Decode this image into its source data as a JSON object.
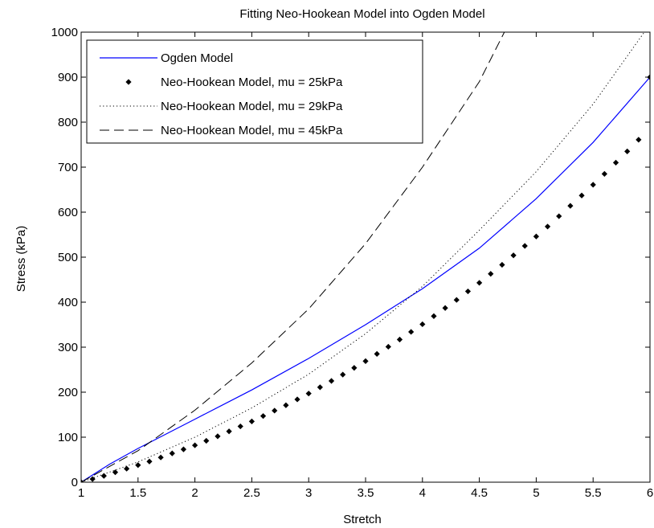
{
  "chart_data": {
    "type": "line",
    "title": "Fitting Neo-Hookean Model into Ogden Model",
    "xlabel": "Stretch",
    "ylabel": "Stress (kPa)",
    "xlim": [
      1,
      6
    ],
    "ylim": [
      0,
      1000
    ],
    "xticks": [
      "1",
      "1.5",
      "2",
      "2.5",
      "3",
      "3.5",
      "4",
      "4.5",
      "5",
      "5.5",
      "6"
    ],
    "yticks": [
      "0",
      "100",
      "200",
      "300",
      "400",
      "500",
      "600",
      "700",
      "800",
      "900",
      "1000"
    ],
    "grid": false,
    "legend_position": "top-left",
    "series": [
      {
        "name": "Ogden Model",
        "style": "solid",
        "color": "#0000ff",
        "x": [
          1,
          1.25,
          1.5,
          2,
          2.5,
          3,
          3.5,
          4,
          4.5,
          5,
          5.5,
          6
        ],
        "y": [
          0,
          40,
          75,
          140,
          205,
          275,
          350,
          430,
          520,
          630,
          755,
          900
        ]
      },
      {
        "name": "Neo-Hookean Model, mu = 25kPa",
        "style": "markers",
        "color": "#000000",
        "x": [
          1,
          1.1,
          1.2,
          1.3,
          1.4,
          1.5,
          1.6,
          1.7,
          1.8,
          1.9,
          2,
          2.1,
          2.2,
          2.3,
          2.4,
          2.5,
          2.6,
          2.7,
          2.8,
          2.9,
          3,
          3.1,
          3.2,
          3.3,
          3.4,
          3.5,
          3.6,
          3.7,
          3.8,
          3.9,
          4,
          4.1,
          4.2,
          4.3,
          4.4,
          4.5,
          4.6,
          4.7,
          4.8,
          4.9,
          5,
          5.1,
          5.2,
          5.3,
          5.4,
          5.5,
          5.6,
          5.7,
          5.8,
          5.9,
          6
        ],
        "y": [
          0,
          7,
          14,
          22,
          30,
          38,
          46,
          55,
          64,
          73,
          82,
          92,
          102,
          113,
          124,
          135,
          147,
          159,
          171,
          184,
          197,
          211,
          225,
          239,
          254,
          269,
          285,
          301,
          317,
          334,
          351,
          369,
          387,
          405,
          424,
          443,
          463,
          483,
          504,
          525,
          546,
          568,
          591,
          614,
          637,
          661,
          685,
          710,
          735,
          761,
          900
        ]
      },
      {
        "name": "Neo-Hookean Model, mu = 29kPa",
        "style": "dotted",
        "color": "#000000",
        "x": [
          1,
          1.5,
          2,
          2.5,
          3,
          3.5,
          4,
          4.5,
          5,
          5.5,
          5.95
        ],
        "y": [
          0,
          45,
          100,
          165,
          240,
          330,
          435,
          560,
          690,
          840,
          1000
        ]
      },
      {
        "name": "Neo-Hookean Model, mu = 45kPa",
        "style": "dashed",
        "color": "#000000",
        "x": [
          1,
          1.5,
          2,
          2.5,
          3,
          3.5,
          4,
          4.5,
          4.72
        ],
        "y": [
          0,
          70,
          160,
          265,
          385,
          530,
          700,
          890,
          1000
        ]
      }
    ]
  }
}
